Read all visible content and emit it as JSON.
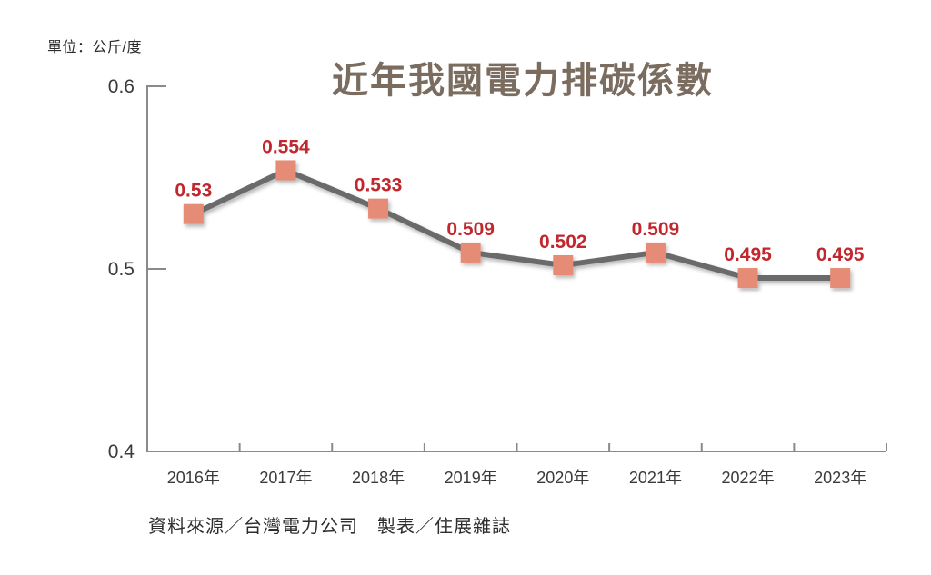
{
  "header": {
    "unit_label": "單位：公斤/度"
  },
  "footer": {
    "source": "資料來源／台灣電力公司　製表／住展雜誌"
  },
  "chart_data": {
    "type": "line",
    "title": "近年我國電力排碳係數",
    "xlabel": "",
    "ylabel": "單位：公斤/度",
    "categories": [
      "2016年",
      "2017年",
      "2018年",
      "2019年",
      "2020年",
      "2021年",
      "2022年",
      "2023年"
    ],
    "values": [
      0.53,
      0.554,
      0.533,
      0.509,
      0.502,
      0.509,
      0.495,
      0.495
    ],
    "point_labels": [
      "0.53",
      "0.554",
      "0.533",
      "0.509",
      "0.502",
      "0.509",
      "0.495",
      "0.495"
    ],
    "ylim": [
      0.4,
      0.6
    ],
    "yticks": [
      0.4,
      0.5,
      0.6
    ],
    "ytick_labels": [
      "0.4",
      "0.5",
      "0.6"
    ],
    "grid": false,
    "legend": "none",
    "marker_shape": "square",
    "colors": {
      "line": "#6a6a6a",
      "marker": "#e68b75",
      "point_label": "#c1272d",
      "axis": "#8a8a8a",
      "tick_text": "#3a3a3a",
      "title": "#7b6c60"
    }
  }
}
